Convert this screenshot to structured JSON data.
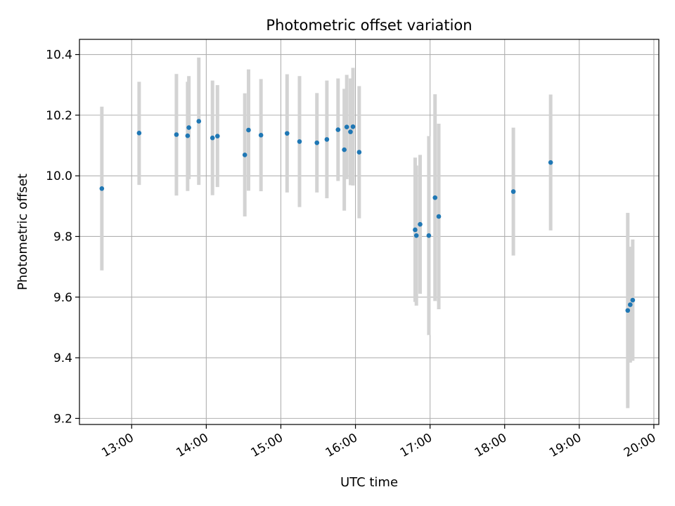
{
  "chart_data": {
    "type": "scatter",
    "title": "Photometric offset variation",
    "xlabel": "UTC time",
    "ylabel": "Photometric offset",
    "x_unit": "UTC time of day (HH:MM)",
    "xlim": [
      "12:18",
      "20:04"
    ],
    "ylim": [
      9.18,
      10.45
    ],
    "x_ticks": [
      "13:00",
      "14:00",
      "15:00",
      "16:00",
      "17:00",
      "18:00",
      "19:00",
      "20:00"
    ],
    "y_ticks": [
      9.2,
      9.4,
      9.6,
      9.8,
      10.0,
      10.2,
      10.4
    ],
    "y_tick_labels": [
      "9.2",
      "9.4",
      "9.6",
      "9.8",
      "10.0",
      "10.2",
      "10.4"
    ],
    "grid": true,
    "marker_color": "#1f77b4",
    "errorbar_color": "#d3d3d3",
    "points": [
      {
        "t": "12:36",
        "y": 9.958,
        "lo": 9.688,
        "hi": 10.228
      },
      {
        "t": "13:06",
        "y": 10.141,
        "lo": 9.97,
        "hi": 10.31
      },
      {
        "t": "13:36",
        "y": 10.136,
        "lo": 9.935,
        "hi": 10.336
      },
      {
        "t": "13:45",
        "y": 10.132,
        "lo": 9.95,
        "hi": 10.31
      },
      {
        "t": "13:46",
        "y": 10.159,
        "lo": 9.989,
        "hi": 10.329
      },
      {
        "t": "13:54",
        "y": 10.18,
        "lo": 9.97,
        "hi": 10.39
      },
      {
        "t": "14:05",
        "y": 10.125,
        "lo": 9.936,
        "hi": 10.314
      },
      {
        "t": "14:09",
        "y": 10.131,
        "lo": 9.963,
        "hi": 10.299
      },
      {
        "t": "14:31",
        "y": 10.069,
        "lo": 9.866,
        "hi": 10.272
      },
      {
        "t": "14:34",
        "y": 10.151,
        "lo": 9.951,
        "hi": 10.351
      },
      {
        "t": "14:44",
        "y": 10.134,
        "lo": 9.949,
        "hi": 10.319
      },
      {
        "t": "15:05",
        "y": 10.14,
        "lo": 9.945,
        "hi": 10.335
      },
      {
        "t": "15:15",
        "y": 10.113,
        "lo": 9.897,
        "hi": 10.329
      },
      {
        "t": "15:29",
        "y": 10.109,
        "lo": 9.945,
        "hi": 10.273
      },
      {
        "t": "15:37",
        "y": 10.12,
        "lo": 9.926,
        "hi": 10.314
      },
      {
        "t": "15:46",
        "y": 10.152,
        "lo": 9.983,
        "hi": 10.321
      },
      {
        "t": "15:51",
        "y": 10.086,
        "lo": 9.885,
        "hi": 10.287
      },
      {
        "t": "15:53",
        "y": 10.161,
        "lo": 9.989,
        "hi": 10.333
      },
      {
        "t": "15:56",
        "y": 10.145,
        "lo": 9.969,
        "hi": 10.321
      },
      {
        "t": "15:58",
        "y": 10.162,
        "lo": 9.968,
        "hi": 10.356
      },
      {
        "t": "16:03",
        "y": 10.078,
        "lo": 9.86,
        "hi": 10.296
      },
      {
        "t": "16:48",
        "y": 9.822,
        "lo": 9.584,
        "hi": 10.06
      },
      {
        "t": "16:49",
        "y": 9.803,
        "lo": 9.572,
        "hi": 10.034
      },
      {
        "t": "16:52",
        "y": 9.84,
        "lo": 9.611,
        "hi": 10.069
      },
      {
        "t": "16:59",
        "y": 9.803,
        "lo": 9.475,
        "hi": 10.131
      },
      {
        "t": "17:04",
        "y": 9.928,
        "lo": 9.587,
        "hi": 10.269
      },
      {
        "t": "17:07",
        "y": 9.866,
        "lo": 9.56,
        "hi": 10.172
      },
      {
        "t": "18:07",
        "y": 9.948,
        "lo": 9.737,
        "hi": 10.159
      },
      {
        "t": "18:37",
        "y": 10.044,
        "lo": 9.82,
        "hi": 10.268
      },
      {
        "t": "19:39",
        "y": 9.556,
        "lo": 9.234,
        "hi": 9.878
      },
      {
        "t": "19:41",
        "y": 9.575,
        "lo": 9.384,
        "hi": 9.766
      },
      {
        "t": "19:43",
        "y": 9.59,
        "lo": 9.39,
        "hi": 9.79
      }
    ]
  }
}
